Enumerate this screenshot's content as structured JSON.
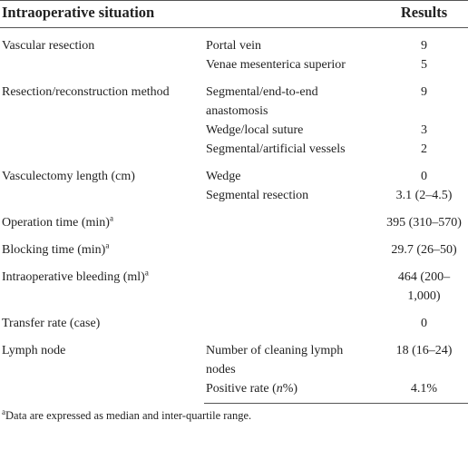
{
  "header": {
    "columns": [
      "Intraoperative situation",
      "Results"
    ]
  },
  "table": {
    "groups": [
      {
        "label": "Vascular resection",
        "items": [
          {
            "detail": "Portal vein",
            "result": 9
          },
          {
            "detail": "Venae mesenterica superior",
            "result": 5
          }
        ]
      },
      {
        "label": "Resection/reconstruction method",
        "items": [
          {
            "detail": "Segmental/end-to-end anastomosis",
            "result": 9
          },
          {
            "detail": "Wedge/local suture",
            "result": 3
          },
          {
            "detail": "Segmental/artificial vessels",
            "result": 2
          }
        ]
      },
      {
        "label": "Vasculectomy length (cm)",
        "items": [
          {
            "detail": "Wedge",
            "result": 0
          },
          {
            "detail": "Segmental resection",
            "result": "3.1 (2–4.5)"
          }
        ]
      },
      {
        "label": "Operation time (min)",
        "note": "a",
        "items": [
          {
            "result": "395 (310–570)"
          }
        ]
      },
      {
        "label": "Blocking time (min)",
        "note": "a",
        "items": [
          {
            "result": "29.7 (26–50)"
          }
        ]
      },
      {
        "label": "Intraoperative bleeding (ml)",
        "note": "a",
        "items": [
          {
            "result": "464 (200–1,000)"
          }
        ]
      },
      {
        "label": "Transfer rate (case)",
        "items": [
          {
            "result": 0
          }
        ]
      },
      {
        "label": "Lymph node",
        "items": [
          {
            "detail": "Number of cleaning lymph nodes",
            "result": "18 (16–24)"
          },
          {
            "detail": [
              "Positive rate (",
              "n",
              "%)"
            ],
            "result": "4.1%"
          }
        ]
      }
    ]
  },
  "footnote": {
    "mark": "a",
    "text": "Data are expressed as median and inter-quartile range."
  }
}
